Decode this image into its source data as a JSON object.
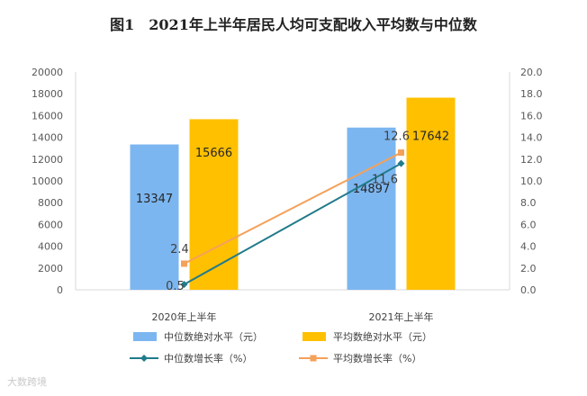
{
  "title": "图1　2021年上半年居民人均可支配收入平均数与中位数",
  "watermark": "大数跨境",
  "colors": {
    "median_bar": "#7cb6f0",
    "mean_bar": "#ffc000",
    "median_line": "#217b8a",
    "mean_line": "#f4a15a",
    "axis": "#d9d9d9",
    "grid": "#e6e6e6"
  },
  "chart_data": {
    "type": "bar+line",
    "title": "图1　2021年上半年居民人均可支配收入平均数与中位数",
    "categories": [
      "2020年上半年",
      "2021年上半年"
    ],
    "left_axis": {
      "min": 0,
      "max": 20000,
      "step": 2000,
      "ticks": [
        "0",
        "2000",
        "4000",
        "6000",
        "8000",
        "10000",
        "12000",
        "14000",
        "16000",
        "18000",
        "20000"
      ]
    },
    "right_axis": {
      "min": 0,
      "max": 20,
      "step": 2,
      "ticks": [
        "0.0",
        "2.0",
        "4.0",
        "6.0",
        "8.0",
        "10.0",
        "12.0",
        "14.0",
        "16.0",
        "18.0",
        "20.0"
      ]
    },
    "bar_series": [
      {
        "name": "中位数绝对水平（元）",
        "values": [
          13347,
          14897
        ],
        "labels": [
          "13347",
          "14897"
        ]
      },
      {
        "name": "平均数绝对水平（元）",
        "values": [
          15666,
          17642
        ],
        "labels": [
          "15666",
          "17642"
        ]
      }
    ],
    "line_series": [
      {
        "name": "中位数增长率（%）",
        "values": [
          0.5,
          11.6
        ],
        "labels": [
          "0.5",
          "11.6"
        ]
      },
      {
        "name": "平均数增长率（%）",
        "values": [
          2.4,
          12.6
        ],
        "labels": [
          "2.4",
          "12.6"
        ]
      }
    ],
    "legend_position": "bottom"
  }
}
